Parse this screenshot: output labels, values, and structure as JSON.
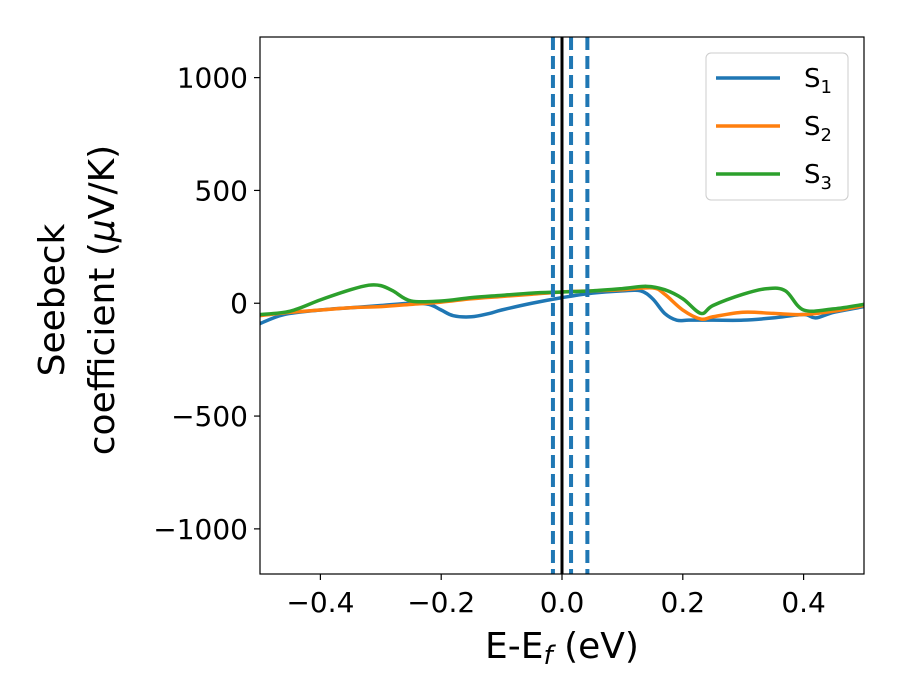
{
  "chart_data": {
    "type": "line",
    "xlabel_main": "E-E",
    "xlabel_sub": "f",
    "xlabel_unit": " (eV)",
    "ylabel_line1": "Seebeck",
    "ylabel_line2_text": "coefficient  (",
    "ylabel_line2_mu": "μ",
    "ylabel_line2_unit": "V/K)",
    "xlim": [
      -0.5,
      0.5
    ],
    "ylim": [
      -1200,
      1180
    ],
    "xticks": [
      -0.4,
      -0.2,
      0.0,
      0.2,
      0.4
    ],
    "xtick_labels": [
      "−0.4",
      "−0.2",
      "0.0",
      "0.2",
      "0.4"
    ],
    "yticks": [
      -1000,
      -500,
      0,
      500,
      1000
    ],
    "ytick_labels": [
      "−1000",
      "−500",
      "0",
      "500",
      "1000"
    ],
    "legend_position": "top-right",
    "grid": false,
    "vertical_lines": [
      {
        "x": 0.0,
        "style": "solid",
        "color": "#000000"
      },
      {
        "x": -0.015,
        "style": "dashed",
        "color": "#1f77b4"
      },
      {
        "x": 0.015,
        "style": "dashed",
        "color": "#1f77b4"
      },
      {
        "x": 0.042,
        "style": "dashed",
        "color": "#1f77b4"
      }
    ],
    "series": [
      {
        "name": "S",
        "name_sub": "1",
        "color": "#1f77b4",
        "x": [
          -0.5,
          -0.46,
          -0.4,
          -0.35,
          -0.3,
          -0.25,
          -0.22,
          -0.2,
          -0.18,
          -0.15,
          -0.12,
          -0.1,
          -0.05,
          0.0,
          0.05,
          0.1,
          0.13,
          0.15,
          0.17,
          0.19,
          0.21,
          0.25,
          0.3,
          0.35,
          0.4,
          0.42,
          0.45,
          0.5
        ],
        "y": [
          -90,
          -50,
          -30,
          -20,
          -10,
          0,
          -5,
          -30,
          -55,
          -60,
          -45,
          -30,
          0,
          25,
          45,
          55,
          55,
          20,
          -45,
          -75,
          -75,
          -75,
          -75,
          -65,
          -50,
          -65,
          -40,
          -15
        ]
      },
      {
        "name": "S",
        "name_sub": "2",
        "color": "#ff7f0e",
        "x": [
          -0.5,
          -0.45,
          -0.4,
          -0.35,
          -0.3,
          -0.25,
          -0.2,
          -0.15,
          -0.1,
          -0.05,
          0.0,
          0.05,
          0.1,
          0.15,
          0.17,
          0.2,
          0.23,
          0.25,
          0.3,
          0.35,
          0.4,
          0.45,
          0.5
        ],
        "y": [
          -55,
          -40,
          -30,
          -20,
          -15,
          -5,
          5,
          20,
          30,
          40,
          50,
          55,
          60,
          68,
          40,
          -30,
          -70,
          -60,
          -40,
          -45,
          -50,
          -35,
          -10
        ]
      },
      {
        "name": "S",
        "name_sub": "3",
        "color": "#2ca02c",
        "x": [
          -0.5,
          -0.45,
          -0.4,
          -0.35,
          -0.32,
          -0.3,
          -0.28,
          -0.25,
          -0.2,
          -0.15,
          -0.1,
          -0.05,
          0.0,
          0.05,
          0.1,
          0.14,
          0.17,
          0.2,
          0.23,
          0.25,
          0.3,
          0.34,
          0.37,
          0.4,
          0.45,
          0.5
        ],
        "y": [
          -50,
          -35,
          15,
          60,
          80,
          78,
          55,
          10,
          10,
          25,
          35,
          45,
          50,
          55,
          65,
          75,
          60,
          20,
          -45,
          -10,
          40,
          65,
          55,
          -30,
          -25,
          -5
        ]
      }
    ]
  }
}
